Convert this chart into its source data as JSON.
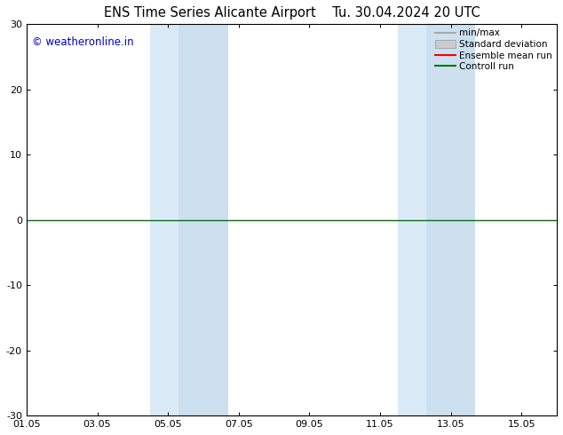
{
  "title_left": "ENS Time Series Alicante Airport",
  "title_right": "Tu. 30.04.2024 20 UTC",
  "ylim": [
    -30,
    30
  ],
  "yticks": [
    -30,
    -20,
    -10,
    0,
    10,
    20,
    30
  ],
  "xtick_labels": [
    "01.05",
    "03.05",
    "05.05",
    "07.05",
    "09.05",
    "11.05",
    "13.05",
    "15.05"
  ],
  "xtick_positions_days": [
    0,
    2,
    4,
    6,
    8,
    10,
    12,
    14
  ],
  "xlim_days": [
    0,
    15
  ],
  "shaded_bands": [
    {
      "start_day": 3.5,
      "end_day": 4.3,
      "color": "#daeaf7"
    },
    {
      "start_day": 4.3,
      "end_day": 5.7,
      "color": "#cce0f0"
    },
    {
      "start_day": 10.5,
      "end_day": 11.3,
      "color": "#daeaf7"
    },
    {
      "start_day": 11.3,
      "end_day": 12.7,
      "color": "#cce0f0"
    }
  ],
  "hline_y": 0,
  "hline_color": "#007700",
  "hline_linewidth": 1.0,
  "copyright_text": "© weatheronline.in",
  "copyright_color": "#0000bb",
  "copyright_fontsize": 8.5,
  "legend_items": [
    {
      "label": "min/max",
      "type": "line",
      "color": "#aaaaaa",
      "lw": 1.5
    },
    {
      "label": "Standard deviation",
      "type": "box",
      "color": "#cccccc"
    },
    {
      "label": "Ensemble mean run",
      "type": "line",
      "color": "#ff0000",
      "lw": 1.5
    },
    {
      "label": "Controll run",
      "type": "line",
      "color": "#007700",
      "lw": 1.5
    }
  ],
  "title_fontsize": 10.5,
  "tick_fontsize": 8,
  "bg_color": "#ffffff",
  "axis_linewidth": 0.8
}
